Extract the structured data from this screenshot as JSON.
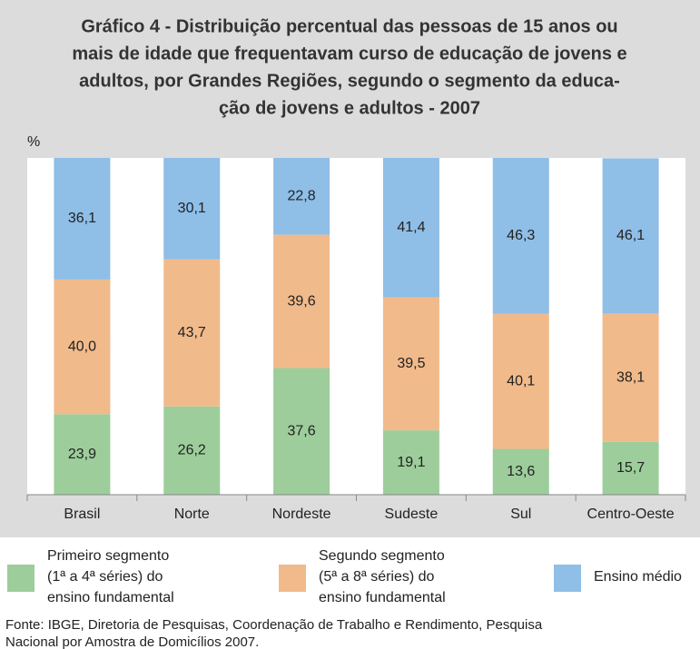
{
  "chart_data": {
    "type": "stacked_bar",
    "title": [
      "Gráfico 4 - Distribuição percentual das pessoas de 15 anos ou",
      "mais de idade que frequentavam curso de educação de jovens e",
      "adultos, por Grandes Regiões, segundo o segmento da educa-",
      "ção de jovens e adultos - 2007"
    ],
    "y_label": "%",
    "categories": [
      "Brasil",
      "Norte",
      "Nordeste",
      "Sudeste",
      "Sul",
      "Centro-Oeste"
    ],
    "ylim": [
      0,
      100
    ],
    "series": [
      {
        "name": [
          "Primeiro segmento",
          "(1ª a 4ª séries) do",
          "ensino fundamental"
        ],
        "color": "#9dcd9b",
        "values": [
          23.9,
          26.2,
          37.6,
          19.1,
          13.6,
          15.7
        ],
        "value_labels": [
          "23,9",
          "26,2",
          "37,6",
          "19,1",
          "13,6",
          "15,7"
        ]
      },
      {
        "name": [
          "Segundo segmento",
          "(5ª a 8ª séries) do",
          "ensino fundamental"
        ],
        "color": "#f1ba8b",
        "values": [
          40.0,
          43.7,
          39.6,
          39.5,
          40.1,
          38.1
        ],
        "value_labels": [
          "40,0",
          "43,7",
          "39,6",
          "39,5",
          "40,1",
          "38,1"
        ]
      },
      {
        "name": [
          "Ensino médio"
        ],
        "color": "#8fbee7",
        "values": [
          36.1,
          30.1,
          22.8,
          41.4,
          46.3,
          46.1
        ],
        "value_labels": [
          "36,1",
          "30,1",
          "22,8",
          "41,4",
          "46,3",
          "46,1"
        ]
      }
    ],
    "source": [
      "Fonte: IBGE, Diretoria de Pesquisas, Coordenação de Trabalho e Rendimento, Pesquisa",
      "Nacional por Amostra de Domicílios 2007."
    ]
  }
}
